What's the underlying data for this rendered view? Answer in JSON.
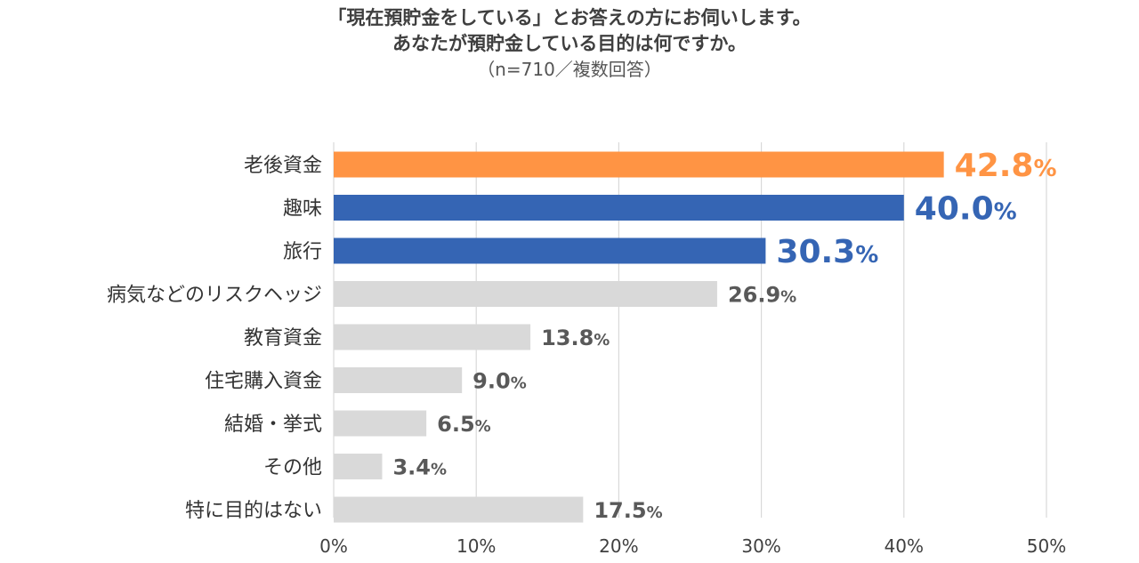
{
  "title_lines": [
    "「現在預貯金をしている」とお答えの方にお伺いします。",
    "あなたが預貯金している目的は何ですか。"
  ],
  "subtitle": "（n=710／複数回答）",
  "colors": {
    "highlight": "#FF9444",
    "primary": "#3565B4",
    "other": "#D9D9D9",
    "label_other": "#595959",
    "grid": "#D9D9D9"
  },
  "chart_data": {
    "type": "bar",
    "orientation": "horizontal",
    "categories": [
      "老後資金",
      "趣味",
      "旅行",
      "病気などのリスクヘッジ",
      "教育資金",
      "住宅購入資金",
      "結婚・挙式",
      "その他",
      "特に目的はない"
    ],
    "values": [
      42.8,
      40.0,
      30.3,
      26.9,
      13.8,
      9.0,
      6.5,
      3.4,
      17.5
    ],
    "value_labels": [
      "42.8",
      "40.0",
      "30.3",
      "26.9",
      "13.8",
      "9.0",
      "6.5",
      "3.4",
      "17.5"
    ],
    "value_suffix": "%",
    "bar_color_keys": [
      "highlight",
      "primary",
      "primary",
      "other",
      "other",
      "other",
      "other",
      "other",
      "other"
    ],
    "emphasized": [
      true,
      true,
      true,
      false,
      false,
      false,
      false,
      false,
      false
    ],
    "xlim": [
      0,
      50
    ],
    "ticks": [
      0,
      10,
      20,
      30,
      40,
      50
    ],
    "tick_labels": [
      "0%",
      "10%",
      "20%",
      "30%",
      "40%",
      "50%"
    ],
    "grid": true,
    "legend": "none"
  }
}
